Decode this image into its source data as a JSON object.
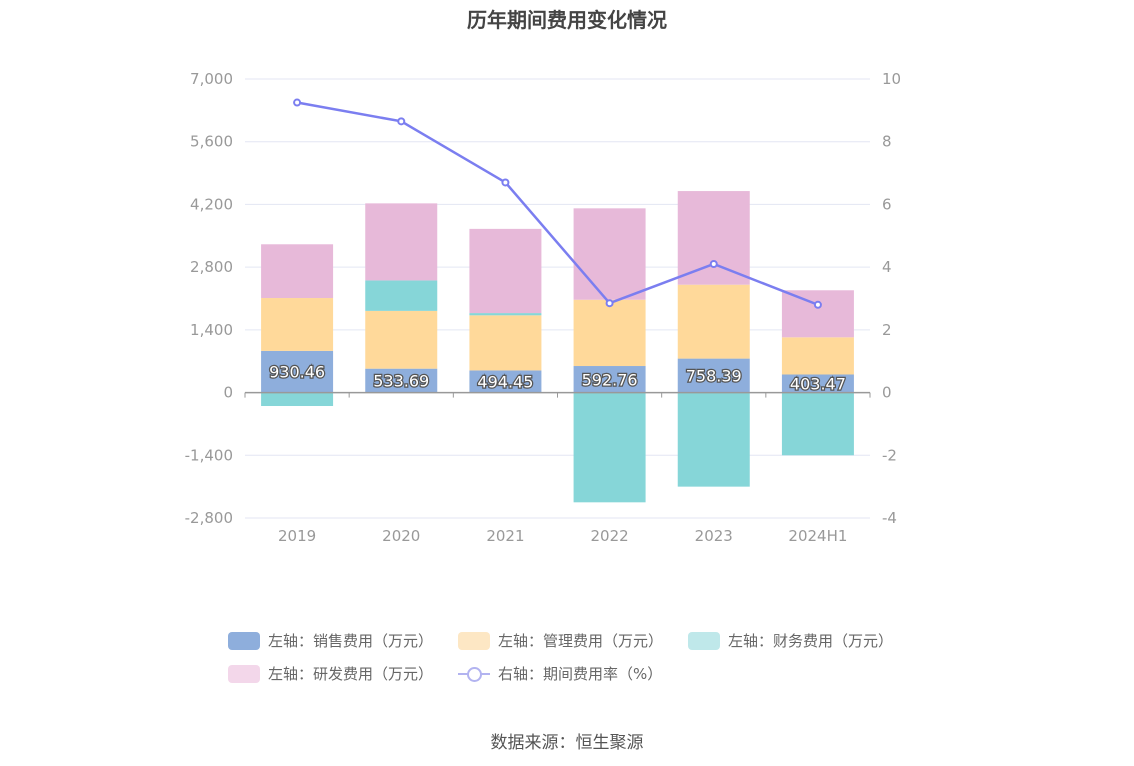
{
  "title": "历年期间费用变化情况",
  "source": "数据来源：恒生聚源",
  "colors": {
    "sales": "#8eaedc",
    "admin": "#ffd99a",
    "finance": "#86d6d8",
    "rd": "#e7b9d9",
    "rate": "#7b7ef0",
    "grid": "#e3e6f3",
    "axis_text": "#999999",
    "zero_line": "#999999"
  },
  "legend": [
    {
      "label": "左轴：销售费用（万元）",
      "color": "#8eaedc",
      "kind": "bar"
    },
    {
      "label": "左轴：管理费用（万元）",
      "color": "#fde7c4",
      "kind": "bar"
    },
    {
      "label": "左轴：财务费用（万元）",
      "color": "#bfe8ea",
      "kind": "bar"
    },
    {
      "label": "左轴：研发费用（万元）",
      "color": "#f3d7ea",
      "kind": "bar"
    },
    {
      "label": "右轴：期间费用率（%）",
      "color": "#b2b3f0",
      "kind": "line"
    }
  ],
  "chart_data": {
    "type": "bar",
    "categories": [
      "2019",
      "2020",
      "2021",
      "2022",
      "2023",
      "2024H1"
    ],
    "stacked": true,
    "series": [
      {
        "name": "左轴：销售费用（万元）",
        "axis": "left",
        "color": "#8eaedc",
        "values": [
          930.46,
          533.69,
          494.45,
          592.76,
          758.39,
          403.47
        ],
        "labels": [
          "930.46",
          "533.69",
          "494.45",
          "592.76",
          "758.39",
          "403.47"
        ]
      },
      {
        "name": "左轴：管理费用（万元）",
        "axis": "left",
        "color": "#ffd99a",
        "values": [
          1180,
          1290,
          1230,
          1480,
          1650,
          830
        ]
      },
      {
        "name": "左轴：财务费用（万元）",
        "axis": "left",
        "color": "#86d6d8",
        "values": [
          -300,
          680,
          50,
          -2450,
          -2100,
          -1400
        ]
      },
      {
        "name": "左轴：研发费用（万元）",
        "axis": "left",
        "color": "#e7b9d9",
        "values": [
          1200,
          1720,
          1880,
          2040,
          2090,
          1050
        ]
      }
    ],
    "line_series": [
      {
        "name": "右轴：期间费用率（%）",
        "axis": "right",
        "color": "#7b7ef0",
        "values": [
          9.25,
          8.65,
          6.7,
          2.85,
          4.1,
          2.8
        ]
      }
    ],
    "left_axis": {
      "ylim": [
        -2800,
        7000
      ],
      "ticks": [
        7000,
        5600,
        4200,
        2800,
        1400,
        0,
        -1400,
        -2800
      ],
      "tick_labels": [
        "7,000",
        "5,600",
        "4,200",
        "2,800",
        "1,400",
        "0",
        "-1,400",
        "-2,800"
      ]
    },
    "right_axis": {
      "ylim": [
        -4,
        10
      ],
      "ticks": [
        10,
        8,
        6,
        4,
        2,
        0,
        -2,
        -4
      ],
      "tick_labels": [
        "10",
        "8",
        "6",
        "4",
        "2",
        "0",
        "-2",
        "-4"
      ]
    },
    "grid": true,
    "legend_position": "bottom"
  }
}
